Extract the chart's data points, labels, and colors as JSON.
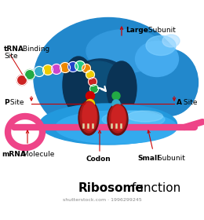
{
  "bg_color": "#ffffff",
  "large_sub_color": "#2288cc",
  "large_sub_mid": "#1a6faa",
  "large_sub_dark": "#1055888",
  "large_sub_highlight": "#55aaee",
  "large_sub_shine": "#88ccff",
  "small_sub_color": "#33aadd",
  "small_sub_highlight": "#66ccff",
  "groove_dark": "#0a3d66",
  "groove_mid": "#0d4f80",
  "dark_blue_arch": "#0a3355",
  "mrna_color": "#ee4488",
  "mrna_loop_color": "#ee4488",
  "dark_red": "#8B1a1a",
  "dark_red2": "#aa2222",
  "white": "#ffffff",
  "arrow_color": "#cc0000",
  "label_color": "#000000",
  "bead_colors_outer": [
    "#cc2222",
    "#22aa44",
    "#33aacc",
    "#eecc00",
    "#cc44cc",
    "#ee8800",
    "#2244cc",
    "#22cc88"
  ],
  "bead_colors_inner": [
    "#ee8800",
    "#eecc00",
    "#cc2222",
    "#22aa44"
  ],
  "p_site_beads": [
    "#cc0000",
    "#eecc00"
  ],
  "a_site_beads": [
    "#22aa44",
    "#33aacc"
  ],
  "shutterstock_text": "shutterstock.com · 1996299245",
  "large_subunit_label_bold": "Large",
  "large_subunit_label_normal": " Subunit",
  "small_subunit_label_bold": "Small",
  "small_subunit_label_normal": " Subunit",
  "trna_label_bold": "tRNA",
  "trna_label_normal": " Binding",
  "trna_label_line2": "Site",
  "psite_bold": "P",
  "psite_normal": " Site",
  "asite_bold": "A",
  "asite_normal": " Site",
  "mrna_bold": "mRNA",
  "mrna_normal": " Molecule",
  "codon_bold": "Codon",
  "title_bold": "Ribosome",
  "title_normal": " function"
}
